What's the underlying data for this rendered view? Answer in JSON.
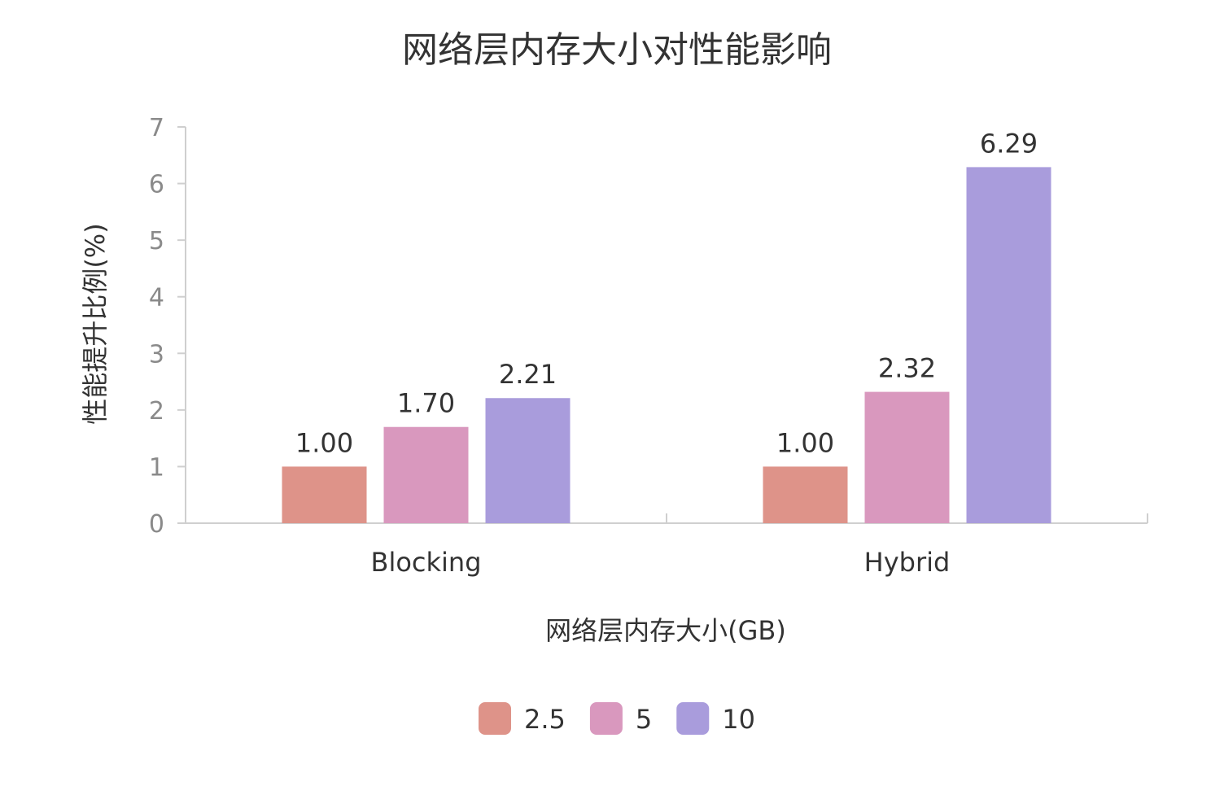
{
  "chart_data": {
    "type": "bar",
    "title": "网络层内存大小对性能影响",
    "xlabel": "网络层内存大小(GB)",
    "ylabel": "性能提升比例(%)",
    "categories": [
      "Blocking",
      "Hybrid"
    ],
    "series": [
      {
        "name": "2.5",
        "color": "#de9389",
        "values": [
          1.0,
          1.0
        ],
        "labels": [
          "1.00",
          "1.00"
        ]
      },
      {
        "name": "5",
        "color": "#d998be",
        "values": [
          1.7,
          2.32
        ],
        "labels": [
          "1.70",
          "2.32"
        ]
      },
      {
        "name": "10",
        "color": "#a99cdc",
        "values": [
          2.21,
          6.29
        ],
        "labels": [
          "2.21",
          "6.29"
        ]
      }
    ],
    "ylim": [
      0,
      7
    ],
    "yticks": [
      "0",
      "1",
      "2",
      "3",
      "4",
      "5",
      "6",
      "7"
    ],
    "grid": false,
    "legend_position": "bottom-center"
  }
}
